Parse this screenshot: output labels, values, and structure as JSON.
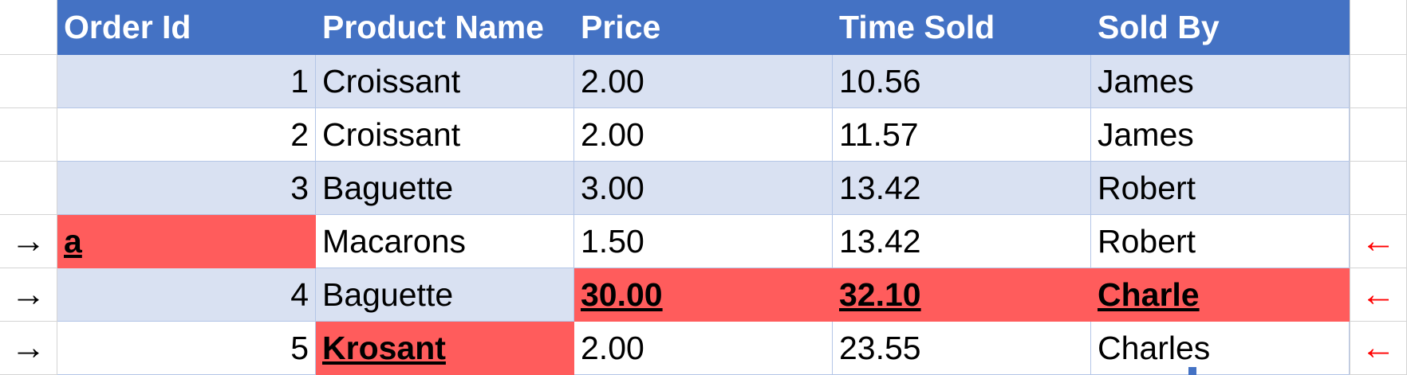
{
  "headers": [
    "Order Id",
    "Product Name",
    "Price",
    "Time Sold",
    "Sold By"
  ],
  "rows": [
    {
      "order_id": "1",
      "product": "Croissant",
      "price": "2.00",
      "time": "10.56",
      "sold_by": "James"
    },
    {
      "order_id": "2",
      "product": "Croissant",
      "price": "2.00",
      "time": "11.57",
      "sold_by": "James"
    },
    {
      "order_id": "3",
      "product": "Baguette",
      "price": "3.00",
      "time": "13.42",
      "sold_by": "Robert"
    },
    {
      "order_id": "a",
      "product": "Macarons",
      "price": "1.50",
      "time": "13.42",
      "sold_by": "Robert"
    },
    {
      "order_id": "4",
      "product": "Baguette",
      "price": "30.00",
      "time": "32.10",
      "sold_by": "Charle"
    },
    {
      "order_id": "5",
      "product": "Krosant",
      "price": "2.00",
      "time": "23.55",
      "sold_by": "Charles"
    }
  ],
  "markers": {
    "left_arrow": "→",
    "right_arrow": "←",
    "left_arrow_color": "#000000",
    "right_arrow_color": "#ff0000"
  },
  "colors": {
    "header_bg": "#4472c4",
    "band_bg": "#d9e1f2",
    "error_bg": "#ff5c5c"
  }
}
